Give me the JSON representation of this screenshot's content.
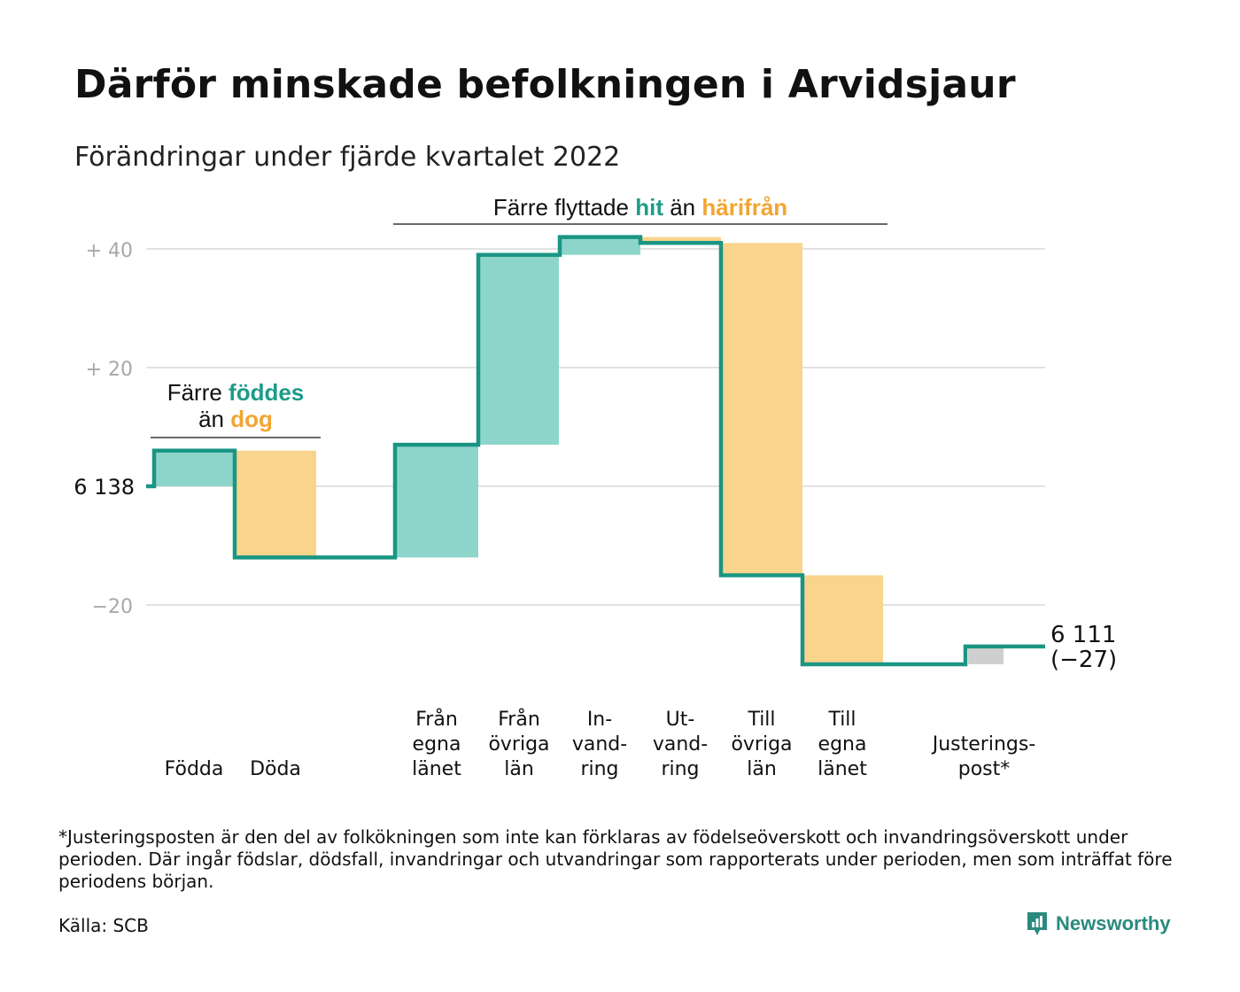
{
  "title": "Därför minskade befolkningen i Arvidsjaur",
  "subtitle": "Förändringar under fjärde kvartalet 2022",
  "annotations": {
    "births_pre": "Färre ",
    "births_hl": "föddes",
    "births_mid": "än ",
    "births_hl2": "dog",
    "migration_pre": "Färre flyttade ",
    "migration_hl": "hit",
    "migration_mid": " än ",
    "migration_hl2": "härifrån"
  },
  "start_label": "6 138",
  "end_label": "6 111",
  "end_change": "(−27)",
  "footnote": "*Justeringsposten är den del av folkökningen som inte kan förklaras av födelseöverskott och invandringsöverskott under perioden. Där ingår födslar, dödsfall, invandringar och utvandringar som rapporterats under perioden, men som inträffat före periodens början.",
  "source": "Källa: SCB",
  "logo_text": "Newsworthy",
  "colors": {
    "positive": "#8dd5cb",
    "negative": "#f9d48c",
    "adjustment": "#cfcfcf",
    "line": "#1a9584",
    "grid": "#e2e2e2",
    "tick": "#a8a8a8",
    "accent_teal": "#1d9c8a",
    "accent_orange": "#f2a531"
  },
  "chart_data": {
    "type": "waterfall",
    "start": 6138,
    "end": 6111,
    "y_tick_labels": [
      "+ 40",
      "+ 20",
      "6 138",
      "−20"
    ],
    "y_tick_values": [
      40,
      20,
      0,
      -20
    ],
    "ylim": [
      -32,
      42
    ],
    "steps": [
      {
        "category": [
          "Födda"
        ],
        "value": 6,
        "kind": "positive"
      },
      {
        "category": [
          "Döda"
        ],
        "value": -18,
        "kind": "negative"
      },
      {
        "category": [
          "Från",
          "egna",
          "länet"
        ],
        "value": 19,
        "kind": "positive"
      },
      {
        "category": [
          "Från",
          "övriga",
          "län"
        ],
        "value": 32,
        "kind": "positive"
      },
      {
        "category": [
          "In-",
          "vand-",
          "ring"
        ],
        "value": 3,
        "kind": "positive"
      },
      {
        "category": [
          "Ut-",
          "vand-",
          "ring"
        ],
        "value": -1,
        "kind": "negative"
      },
      {
        "category": [
          "Till",
          "övriga",
          "län"
        ],
        "value": -56,
        "kind": "negative"
      },
      {
        "category": [
          "Till",
          "egna",
          "länet"
        ],
        "value": -15,
        "kind": "negative"
      },
      {
        "category": [
          "Justerings-",
          "post*"
        ],
        "value": 3,
        "kind": "adjustment"
      }
    ]
  }
}
